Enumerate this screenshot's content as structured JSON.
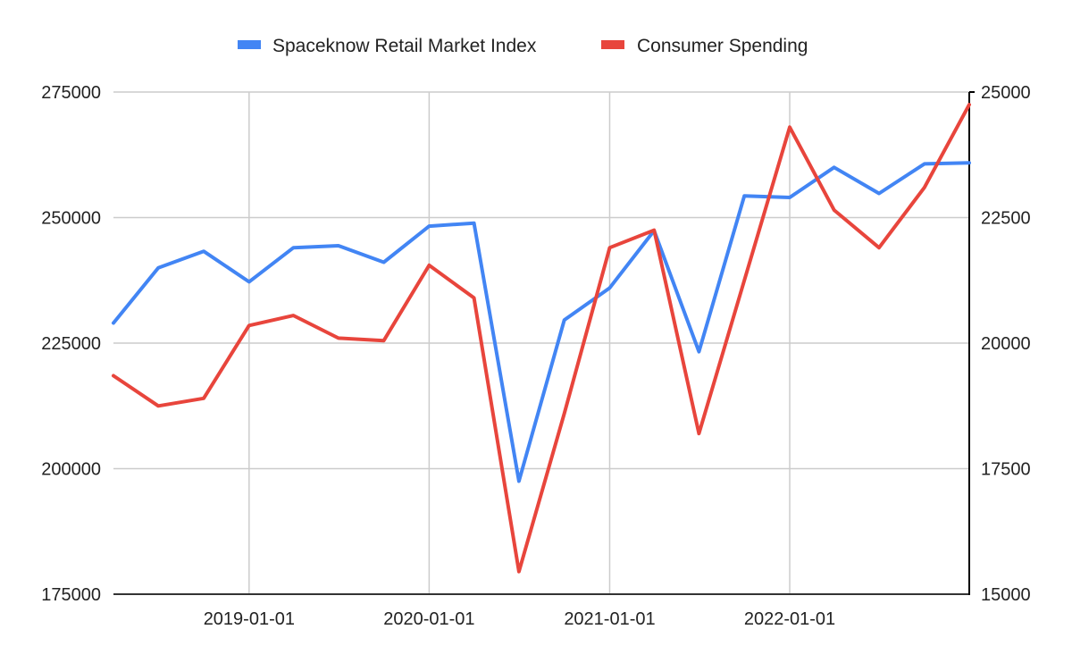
{
  "chart_data": {
    "type": "line",
    "x": [
      "2018-04-01",
      "2018-07-01",
      "2018-10-01",
      "2019-01-01",
      "2019-04-01",
      "2019-07-01",
      "2019-10-01",
      "2020-01-01",
      "2020-04-01",
      "2020-07-01",
      "2020-10-01",
      "2021-01-01",
      "2021-04-01",
      "2021-07-01",
      "2021-10-01",
      "2022-01-01",
      "2022-04-01",
      "2022-07-01",
      "2022-10-01",
      "2022-12-31"
    ],
    "x_tick_labels": [
      "2019-01-01",
      "2020-01-01",
      "2021-01-01",
      "2022-01-01"
    ],
    "series": [
      {
        "name": "Spaceknow Retail Market Index",
        "axis": "left",
        "color": "#4285f4",
        "values": [
          229000,
          240000,
          243300,
          237200,
          244000,
          244400,
          241100,
          248300,
          248900,
          197500,
          229600,
          236000,
          247400,
          223300,
          254300,
          254000,
          260000,
          254800,
          260700,
          260900
        ]
      },
      {
        "name": "Consumer Spending",
        "axis": "right",
        "color": "#e8453c",
        "values": [
          19350,
          18750,
          18900,
          20350,
          20550,
          20100,
          20050,
          21550,
          20900,
          15450,
          18600,
          21900,
          22250,
          18200,
          21250,
          24300,
          22650,
          21900,
          23100,
          24750
        ]
      }
    ],
    "left_axis": {
      "ylim": [
        175000,
        275000
      ],
      "ticks": [
        "175000",
        "200000",
        "225000",
        "250000",
        "275000"
      ]
    },
    "right_axis": {
      "ylim": [
        15000,
        25000
      ],
      "ticks": [
        "15000",
        "17500",
        "20000",
        "22500",
        "25000"
      ]
    },
    "xlim": [
      "2018-04-01",
      "2022-12-31"
    ],
    "grid": true,
    "legend_position": "top"
  }
}
